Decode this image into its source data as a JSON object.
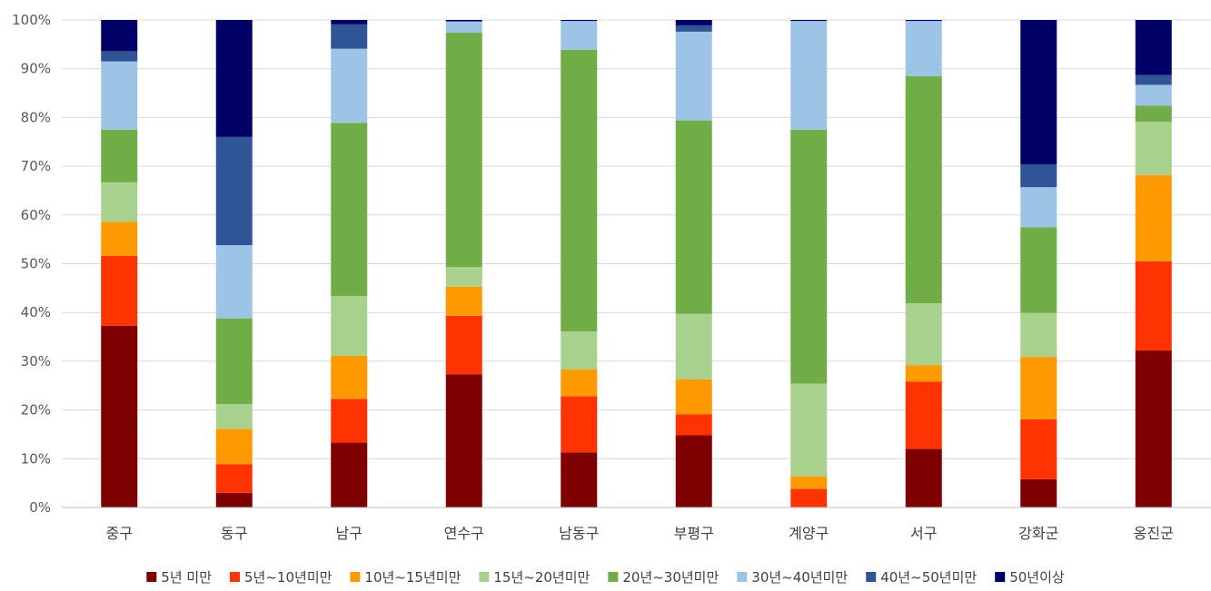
{
  "chart_data": {
    "type": "bar",
    "stacked": true,
    "percent_stacked": true,
    "categories": [
      "중구",
      "동구",
      "남구",
      "연수구",
      "남동구",
      "부평구",
      "계양구",
      "서구",
      "강화군",
      "옹진군"
    ],
    "y_ticks": [
      "0%",
      "10%",
      "20%",
      "30%",
      "40%",
      "50%",
      "60%",
      "70%",
      "80%",
      "90%",
      "100%"
    ],
    "ylim": [
      0,
      100
    ],
    "grid": true,
    "legend_position": "bottom",
    "series": [
      {
        "name": "5년 미만",
        "color": "#7F0000",
        "values": [
          37.3,
          3.0,
          13.3,
          27.3,
          11.3,
          14.8,
          0.0,
          12.0,
          5.8,
          32.2
        ]
      },
      {
        "name": "5년~10년미만",
        "color": "#FF3300",
        "values": [
          14.3,
          5.9,
          9.0,
          12.0,
          11.5,
          4.3,
          3.8,
          13.8,
          12.3,
          18.3
        ]
      },
      {
        "name": "10년~15년미만",
        "color": "#FF9900",
        "values": [
          7.0,
          7.2,
          8.8,
          6.0,
          5.5,
          7.2,
          2.6,
          3.4,
          12.8,
          17.7
        ]
      },
      {
        "name": "15년~20년미만",
        "color": "#A9D18E",
        "values": [
          8.1,
          5.1,
          12.3,
          4.0,
          7.8,
          13.4,
          19.0,
          12.7,
          9.0,
          10.9
        ]
      },
      {
        "name": "20년~30년미만",
        "color": "#70AD47",
        "values": [
          10.8,
          17.6,
          35.5,
          48.1,
          57.8,
          39.7,
          52.1,
          46.6,
          17.6,
          3.3
        ]
      },
      {
        "name": "30년~40년미만",
        "color": "#9DC3E6",
        "values": [
          14.0,
          15.0,
          15.2,
          2.3,
          5.9,
          18.2,
          22.3,
          11.3,
          8.2,
          4.3
        ]
      },
      {
        "name": "40년~50년미만",
        "color": "#2F5597",
        "values": [
          2.1,
          22.2,
          5.0,
          0.0,
          0.0,
          1.3,
          0.0,
          0.0,
          4.7,
          2.0
        ]
      },
      {
        "name": "50년이상",
        "color": "#000066",
        "values": [
          6.4,
          24.0,
          0.9,
          0.3,
          0.2,
          1.1,
          0.2,
          0.2,
          29.6,
          11.3
        ]
      }
    ]
  }
}
